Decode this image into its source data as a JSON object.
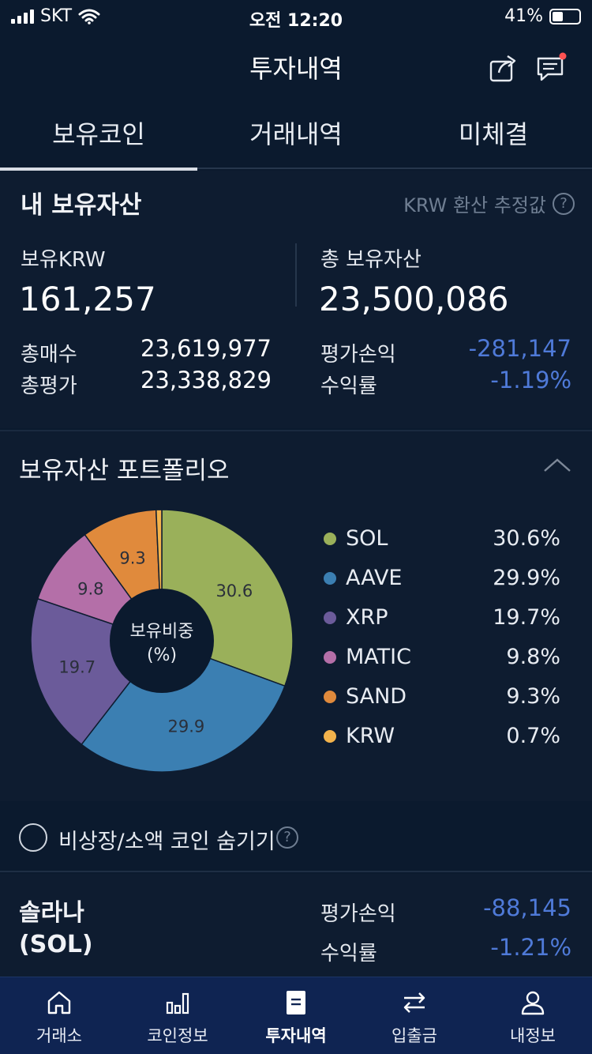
{
  "status_bar": {
    "carrier": "SKT",
    "time": "오전 12:20",
    "battery": "41%",
    "battery_level": 0.41
  },
  "header": {
    "title": "투자내역",
    "share_icon": "share-icon",
    "chat_icon": "chat-icon"
  },
  "tabs": [
    {
      "label": "보유코인",
      "active": true
    },
    {
      "label": "거래내역",
      "active": false
    },
    {
      "label": "미체결",
      "active": false
    }
  ],
  "assets": {
    "heading": "내 보유자산",
    "note": "KRW 환산 추정값",
    "krw_label": "보유KRW",
    "krw_value": "161,257",
    "total_label": "총 보유자산",
    "total_value": "23,500,086",
    "buy_label": "총매수",
    "buy_value": "23,619,977",
    "eval_label": "총평가",
    "eval_value": "23,338,829",
    "pnl_label": "평가손익",
    "pnl_value": "-281,147",
    "rate_label": "수익률",
    "rate_value": "-1.19%"
  },
  "portfolio": {
    "heading": "보유자산 포트폴리오",
    "center_line1": "보유비중",
    "center_line2": "(%)",
    "items": [
      {
        "name": "SOL",
        "pct": "30.6%",
        "value": 30.6,
        "label": "30.6",
        "color": "#9ab05a"
      },
      {
        "name": "AAVE",
        "pct": "29.9%",
        "value": 29.9,
        "label": "29.9",
        "color": "#3b7fb2"
      },
      {
        "name": "XRP",
        "pct": "19.7%",
        "value": 19.7,
        "label": "19.7",
        "color": "#6b5b9a"
      },
      {
        "name": "MATIC",
        "pct": "9.8%",
        "value": 9.8,
        "label": "9.8",
        "color": "#b46fa8"
      },
      {
        "name": "SAND",
        "pct": "9.3%",
        "value": 9.3,
        "label": "9.3",
        "color": "#e08a3c"
      },
      {
        "name": "KRW",
        "pct": "0.7%",
        "value": 0.7,
        "label": "",
        "color": "#f3b34c"
      }
    ]
  },
  "hide_option": {
    "label": "비상장/소액 코인 숨기기"
  },
  "coin": {
    "name_line1": "솔라나",
    "name_line2": "(SOL)",
    "pnl_label": "평가손익",
    "pnl_value": "-88,145",
    "rate_label": "수익률",
    "rate_value": "-1.21%"
  },
  "nav": [
    {
      "label": "거래소",
      "icon": "home-icon",
      "active": false
    },
    {
      "label": "코인정보",
      "icon": "bar-chart-icon",
      "active": false
    },
    {
      "label": "투자내역",
      "icon": "document-icon",
      "active": true
    },
    {
      "label": "입출금",
      "icon": "transfer-icon",
      "active": false
    },
    {
      "label": "내정보",
      "icon": "user-icon",
      "active": false
    }
  ]
}
